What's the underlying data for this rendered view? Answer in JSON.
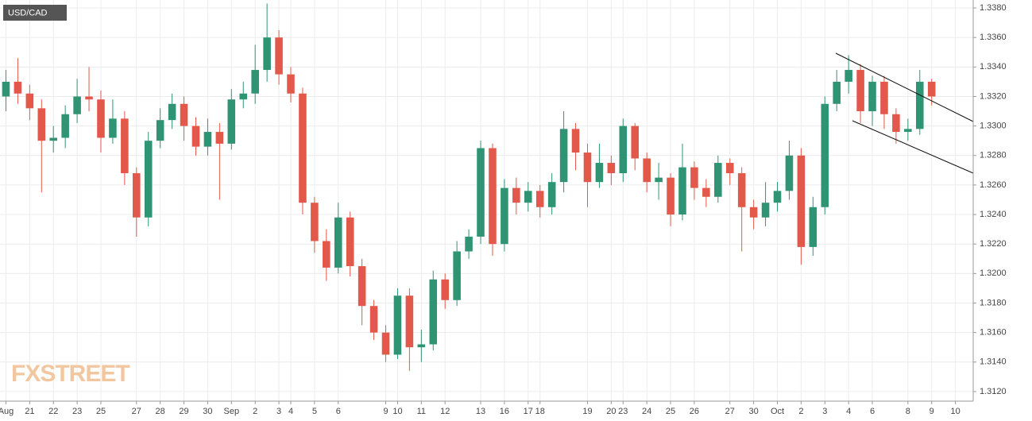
{
  "chart_data": {
    "type": "candlestick",
    "title": "USD/CAD",
    "watermark": "FXSTREET",
    "categories": [
      "Aug",
      null,
      "21",
      null,
      "22",
      null,
      "23",
      null,
      "25",
      null,
      null,
      "27",
      null,
      "28",
      null,
      "29",
      null,
      "30",
      null,
      "Sep",
      null,
      "2",
      null,
      "3",
      "4",
      null,
      "5",
      null,
      "6",
      null,
      null,
      null,
      "9",
      "10",
      null,
      "11",
      null,
      "12",
      null,
      null,
      "13",
      null,
      "16",
      null,
      "17",
      "18",
      null,
      null,
      null,
      "19",
      null,
      "20",
      "23",
      null,
      "24",
      null,
      "25",
      null,
      "26",
      null,
      null,
      "27",
      null,
      "30",
      null,
      "Oct",
      null,
      "2",
      null,
      "3",
      null,
      "4",
      null,
      "6",
      null,
      null,
      "8",
      null,
      "9",
      null,
      "10",
      null
    ],
    "open": [
      1.332,
      1.333,
      1.3322,
      1.3312,
      1.329,
      1.3292,
      1.3308,
      1.332,
      1.3318,
      1.3292,
      1.3305,
      1.3268,
      1.3238,
      1.329,
      1.3304,
      1.3315,
      1.33,
      1.3286,
      1.3296,
      1.3288,
      1.3318,
      1.3322,
      1.3338,
      1.336,
      1.3335,
      1.3322,
      1.3248,
      1.3222,
      1.3204,
      1.3238,
      1.3205,
      1.3178,
      1.316,
      1.3145,
      1.3185,
      1.315,
      1.3152,
      1.3196,
      1.3182,
      1.3215,
      1.3225,
      1.3285,
      1.322,
      1.3258,
      1.3248,
      1.3256,
      1.3245,
      1.3262,
      1.3298,
      1.3282,
      1.3262,
      1.3275,
      1.3268,
      1.33,
      1.3278,
      1.3262,
      1.3265,
      1.324,
      1.3272,
      1.3258,
      1.3252,
      1.3275,
      1.3268,
      1.3245,
      1.3238,
      1.3248,
      1.3256,
      1.328,
      1.3218,
      1.3245,
      1.3315,
      1.333,
      1.3338,
      1.331,
      1.333,
      1.3308,
      1.3296,
      1.3298,
      1.333,
      null,
      null,
      null
    ],
    "high": [
      1.3338,
      1.3346,
      1.3328,
      1.3318,
      1.33,
      1.3314,
      1.3332,
      1.334,
      1.3324,
      1.3318,
      1.331,
      1.3272,
      1.3296,
      1.3312,
      1.3322,
      1.332,
      1.3306,
      1.3305,
      1.3302,
      1.3325,
      1.333,
      1.3355,
      1.3383,
      1.3365,
      1.334,
      1.3326,
      1.3252,
      1.323,
      1.3248,
      1.3242,
      1.321,
      1.3182,
      1.3165,
      1.319,
      1.319,
      1.3162,
      1.3202,
      1.32,
      1.3222,
      1.323,
      1.329,
      1.3288,
      1.3264,
      1.3265,
      1.3262,
      1.326,
      1.3268,
      1.331,
      1.3302,
      1.3288,
      1.3288,
      1.328,
      1.3305,
      1.3302,
      1.3282,
      1.3275,
      1.3268,
      1.3288,
      1.3276,
      1.3264,
      1.328,
      1.3278,
      1.3272,
      1.325,
      1.3262,
      1.3262,
      1.329,
      1.3285,
      1.3252,
      1.332,
      1.3338,
      1.3348,
      1.3342,
      1.3334,
      1.3334,
      1.3312,
      1.3305,
      1.3338,
      1.3332,
      null,
      null,
      null
    ],
    "low": [
      1.331,
      1.3315,
      1.3304,
      1.3255,
      1.3282,
      1.3285,
      1.3302,
      1.331,
      1.3282,
      1.3288,
      1.326,
      1.3225,
      1.3232,
      1.3285,
      1.3298,
      1.329,
      1.328,
      1.328,
      1.325,
      1.3284,
      1.3312,
      1.3315,
      1.333,
      1.3328,
      1.3316,
      1.324,
      1.3214,
      1.3195,
      1.32,
      1.3198,
      1.3165,
      1.3155,
      1.314,
      1.3142,
      1.3134,
      1.314,
      1.3148,
      1.3176,
      1.3178,
      1.321,
      1.322,
      1.3212,
      1.3215,
      1.324,
      1.3242,
      1.3238,
      1.324,
      1.3255,
      1.327,
      1.3245,
      1.3258,
      1.326,
      1.3262,
      1.327,
      1.3255,
      1.325,
      1.3232,
      1.3236,
      1.325,
      1.3245,
      1.3248,
      1.326,
      1.3215,
      1.323,
      1.3232,
      1.3242,
      1.325,
      1.3206,
      1.3212,
      1.324,
      1.331,
      1.3322,
      1.3302,
      1.33,
      1.3298,
      1.3288,
      1.329,
      1.3294,
      1.3314,
      null,
      null,
      null
    ],
    "close": [
      1.333,
      1.3322,
      1.3312,
      1.329,
      1.3292,
      1.3308,
      1.332,
      1.3318,
      1.3292,
      1.3305,
      1.3268,
      1.3238,
      1.329,
      1.3304,
      1.3315,
      1.33,
      1.3286,
      1.3296,
      1.3288,
      1.3318,
      1.3322,
      1.3338,
      1.336,
      1.3335,
      1.3322,
      1.3248,
      1.3222,
      1.3204,
      1.3238,
      1.3205,
      1.3178,
      1.316,
      1.3145,
      1.3185,
      1.315,
      1.3152,
      1.3196,
      1.3182,
      1.3215,
      1.3225,
      1.3285,
      1.322,
      1.3258,
      1.3248,
      1.3256,
      1.3245,
      1.3262,
      1.3298,
      1.3282,
      1.3262,
      1.3275,
      1.3268,
      1.33,
      1.3278,
      1.3262,
      1.3265,
      1.324,
      1.3272,
      1.3258,
      1.3252,
      1.3275,
      1.3268,
      1.3245,
      1.3238,
      1.3248,
      1.3256,
      1.328,
      1.3218,
      1.3245,
      1.3315,
      1.333,
      1.3338,
      1.331,
      1.333,
      1.3308,
      1.3296,
      1.3298,
      1.333,
      1.332,
      null,
      null,
      null
    ],
    "up_color": "#2f9474",
    "down_color": "#e2584a",
    "ylim": [
      1.31135,
      1.33854
    ],
    "yticks": [
      {
        "value": 1.312,
        "label": "1.3120"
      },
      {
        "value": 1.314,
        "label": "1.3140"
      },
      {
        "value": 1.316,
        "label": "1.3160"
      },
      {
        "value": 1.318,
        "label": "1.3180"
      },
      {
        "value": 1.32,
        "label": "1.3200"
      },
      {
        "value": 1.322,
        "label": "1.3220"
      },
      {
        "value": 1.324,
        "label": "1.3240"
      },
      {
        "value": 1.326,
        "label": "1.3260"
      },
      {
        "value": 1.328,
        "label": "1.3280"
      },
      {
        "value": 1.33,
        "label": "1.3300"
      },
      {
        "value": 1.332,
        "label": "1.3320"
      },
      {
        "value": 1.334,
        "label": "1.3340"
      },
      {
        "value": 1.336,
        "label": "1.3360"
      },
      {
        "value": 1.338,
        "label": "1.3380"
      }
    ],
    "grid": true
  }
}
